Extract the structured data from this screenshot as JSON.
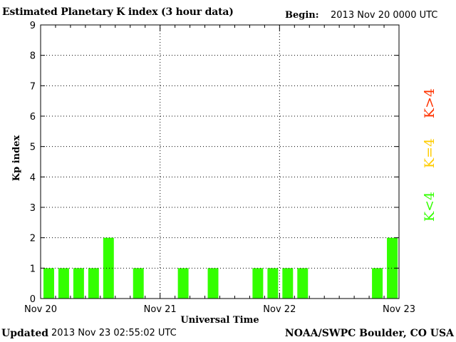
{
  "header": {
    "title": "Estimated Planetary K index (3 hour data)",
    "begin_label": "Begin:",
    "begin_value": "2013 Nov 20 0000 UTC"
  },
  "footer": {
    "updated_label": "Updated",
    "updated_value": "2013 Nov 23 02:55:02 UTC",
    "credit": "NOAA/SWPC Boulder, CO USA"
  },
  "legend": [
    {
      "label": "K>4",
      "color": "#ff3300"
    },
    {
      "label": "K=4",
      "color": "#ffcc00"
    },
    {
      "label": "K<4",
      "color": "#33ff00"
    }
  ],
  "chart_data": {
    "type": "bar",
    "title": "Estimated Planetary K index (3 hour data)",
    "xlabel": "Universal Time",
    "ylabel": "Kp index",
    "ylim": [
      0,
      9
    ],
    "yticks": [
      "0",
      "1",
      "2",
      "3",
      "4",
      "5",
      "6",
      "7",
      "8",
      "9"
    ],
    "x_tick_labels": [
      "Nov 20",
      "Nov 21",
      "Nov 22",
      "Nov 23"
    ],
    "interval_hours": 3,
    "grid": "dotted vertical lines at day boundaries",
    "bar_color": "#33ff00",
    "values": [
      1,
      1,
      1,
      1,
      2,
      null,
      1,
      null,
      null,
      1,
      null,
      1,
      null,
      null,
      1,
      1,
      1,
      1,
      null,
      null,
      null,
      null,
      1,
      2
    ]
  }
}
